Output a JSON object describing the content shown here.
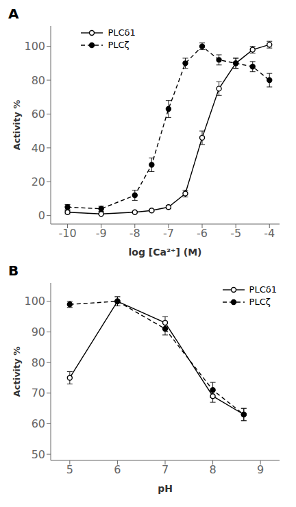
{
  "chart_data": [
    {
      "type": "line",
      "title": "A",
      "xlabel": "log [Ca²⁺] (M)",
      "ylabel": "Activity %",
      "xlim": [
        -10.5,
        -3.7
      ],
      "ylim": [
        -5,
        112
      ],
      "xticks": [
        -10,
        -9,
        -8,
        -7,
        -6,
        -5,
        -4
      ],
      "yticks": [
        0,
        20,
        40,
        60,
        80,
        100
      ],
      "grid": false,
      "legend": "upper left",
      "series": [
        {
          "name": "PLCδ1",
          "color": "#000000",
          "line_style": "solid",
          "marker": "open_circle",
          "x": [
            -10,
            -9,
            -8,
            -7.5,
            -7,
            -6.5,
            -6,
            -5.5,
            -5,
            -4.5,
            -4
          ],
          "values": [
            2,
            1,
            2,
            3,
            5,
            13,
            46,
            75,
            90,
            98,
            101
          ],
          "errors": [
            1,
            0.5,
            0.5,
            0.5,
            1,
            2,
            4,
            4,
            3,
            2,
            2
          ]
        },
        {
          "name": "PLCζ",
          "color": "#000000",
          "line_style": "dashed",
          "marker": "filled_circle",
          "x": [
            -10,
            -9,
            -8,
            -7.5,
            -7,
            -6.5,
            -6,
            -5.5,
            -5,
            -4.5,
            -4
          ],
          "values": [
            5,
            4,
            12,
            30,
            63,
            90,
            100,
            92,
            90,
            88,
            80
          ],
          "errors": [
            1.5,
            1.5,
            3,
            4,
            5,
            3,
            2,
            3,
            3,
            3,
            4
          ]
        }
      ]
    },
    {
      "type": "line",
      "title": "B",
      "xlabel": "pH",
      "ylabel": "Activity %",
      "xlim": [
        4.6,
        9.4
      ],
      "ylim": [
        48,
        106
      ],
      "xticks": [
        5,
        6,
        7,
        8,
        9
      ],
      "yticks": [
        50,
        60,
        70,
        80,
        90,
        100
      ],
      "grid": false,
      "legend": "upper right",
      "series": [
        {
          "name": "PLCδ1",
          "color": "#000000",
          "line_style": "solid",
          "marker": "open_circle",
          "x": [
            5,
            6,
            7,
            8,
            8.65
          ],
          "values": [
            75,
            100,
            93,
            69,
            63
          ],
          "errors": [
            2,
            1.5,
            2,
            2,
            2
          ]
        },
        {
          "name": "PLCζ",
          "color": "#000000",
          "line_style": "dashed",
          "marker": "filled_circle",
          "x": [
            5,
            6,
            7,
            8,
            8.65
          ],
          "values": [
            99,
            100,
            91,
            71,
            63
          ],
          "errors": [
            1,
            1.5,
            2,
            2.5,
            2
          ]
        }
      ]
    }
  ]
}
